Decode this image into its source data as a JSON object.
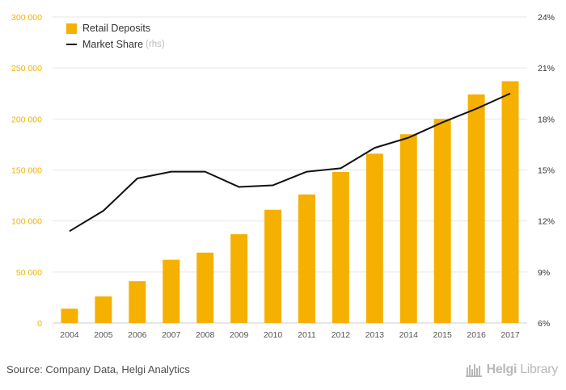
{
  "chart_data": {
    "type": "bar",
    "categories": [
      "2004",
      "2005",
      "2006",
      "2007",
      "2008",
      "2009",
      "2010",
      "2011",
      "2012",
      "2013",
      "2014",
      "2015",
      "2016",
      "2017"
    ],
    "series": [
      {
        "name": "Retail Deposits",
        "type": "bar",
        "axis": "left",
        "color": "#f5b000",
        "values": [
          14000,
          26000,
          41000,
          62000,
          69000,
          87000,
          111000,
          126000,
          148000,
          166000,
          185000,
          200000,
          224000,
          237000
        ]
      },
      {
        "name": "Market Share",
        "name_note": "(rhs)",
        "type": "line",
        "axis": "right",
        "color": "#111111",
        "values": [
          11.4,
          12.6,
          14.5,
          14.9,
          14.9,
          14.0,
          14.1,
          14.9,
          15.1,
          16.3,
          16.9,
          17.8,
          18.6,
          19.5
        ]
      }
    ],
    "y_left": {
      "min": 0,
      "max": 300000,
      "ticks": [
        0,
        50000,
        100000,
        150000,
        200000,
        250000,
        300000
      ],
      "tick_labels": [
        "0",
        "50 000",
        "100 000",
        "150 000",
        "200 000",
        "250 000",
        "300 000"
      ]
    },
    "y_right": {
      "min": 6,
      "max": 24,
      "ticks": [
        6,
        9,
        12,
        15,
        18,
        21,
        24
      ],
      "tick_labels": [
        "6%",
        "9%",
        "12%",
        "15%",
        "18%",
        "21%",
        "24%"
      ]
    },
    "grid": true,
    "legend_position": "top-left"
  },
  "footer": {
    "source": "Source: Company Data, Helgi Analytics",
    "brand_a": "Helgi",
    "brand_b": "Library"
  },
  "colors": {
    "accent": "#f5b000",
    "axis_text_left": "#f5b000",
    "line": "#111111",
    "grid": "#e6e6e6"
  }
}
